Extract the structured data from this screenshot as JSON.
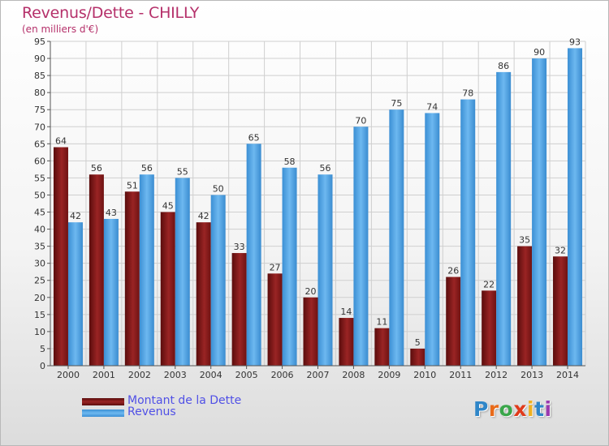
{
  "title": "Revenus/Dette - CHILLY",
  "subtitle": "(en milliers d'€)",
  "chart_data": {
    "type": "bar",
    "title": "Revenus/Dette - CHILLY",
    "subtitle": "(en milliers d'€)",
    "xlabel": "",
    "ylabel": "",
    "categories": [
      "2000",
      "2001",
      "2002",
      "2003",
      "2004",
      "2005",
      "2006",
      "2007",
      "2008",
      "2009",
      "2010",
      "2011",
      "2012",
      "2013",
      "2014"
    ],
    "series": [
      {
        "name": "Montant de la Dette",
        "color": "#8b1a1a",
        "values": [
          64,
          56,
          51,
          45,
          42,
          33,
          27,
          20,
          14,
          11,
          5,
          26,
          22,
          35,
          32
        ]
      },
      {
        "name": "Revenus",
        "color": "#4a9fe0",
        "values": [
          42,
          43,
          56,
          55,
          50,
          65,
          58,
          56,
          70,
          75,
          74,
          78,
          86,
          90,
          93
        ]
      }
    ],
    "ylim": [
      0,
      95
    ],
    "yticks": [
      0,
      5,
      10,
      15,
      20,
      25,
      30,
      35,
      40,
      45,
      50,
      55,
      60,
      65,
      70,
      75,
      80,
      85,
      90,
      95
    ],
    "grid": true,
    "data_labels": true,
    "legend": "bottom-left"
  },
  "legend": {
    "items": [
      {
        "label": "Montant de la Dette",
        "color": "#8b1a1a"
      },
      {
        "label": "Revenus",
        "color": "#4a9fe0"
      }
    ]
  },
  "logo": {
    "text": "Proxiti",
    "letter_colors": [
      "#2f86c8",
      "#e86a1a",
      "#3aa64a",
      "#e03a1a",
      "#f0b020",
      "#2f86c8",
      "#9a3ab0"
    ]
  }
}
